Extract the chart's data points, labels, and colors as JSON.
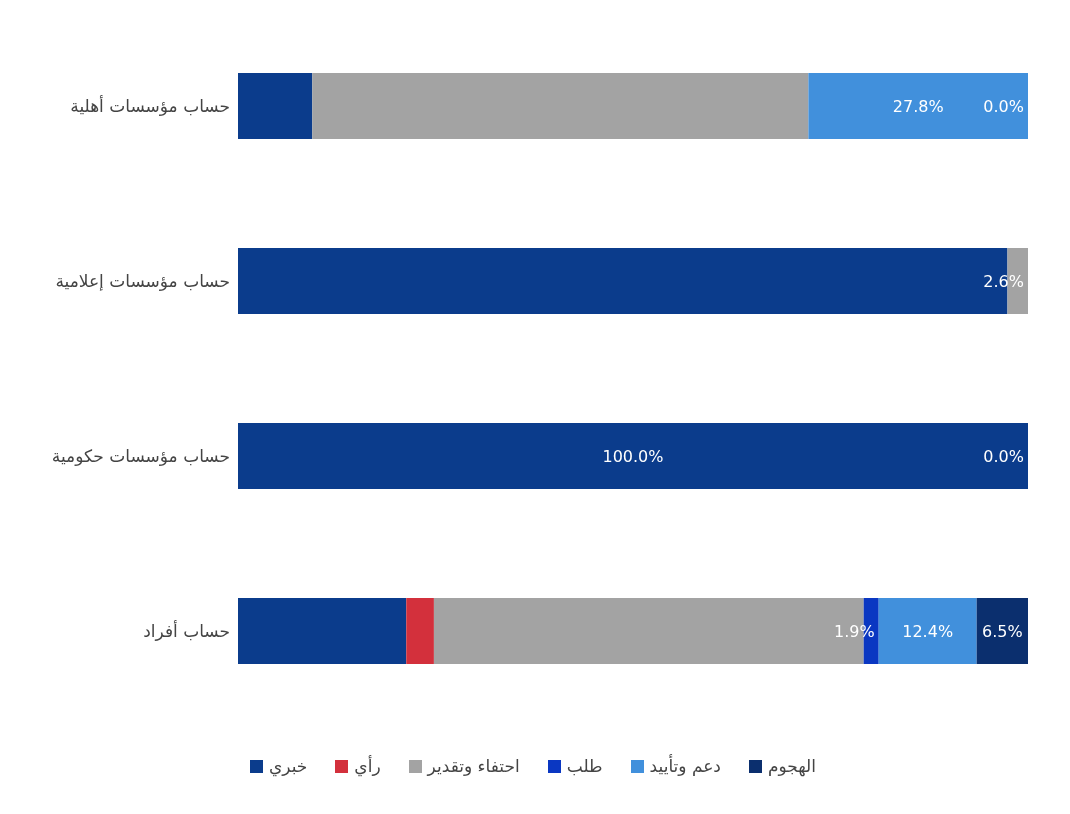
{
  "chart_data": {
    "type": "bar",
    "orientation": "horizontal",
    "stacked": true,
    "categories": [
      "حساب مؤسسات أهلية",
      "حساب مؤسسات إعلامية",
      "حساب مؤسسات حكومية",
      "حساب أفراد"
    ],
    "series": [
      {
        "name": "خبري",
        "color": "#0b3c8c",
        "values": [
          9.4,
          97.4,
          100.0,
          21.3
        ],
        "value_labels": [
          null,
          null,
          "100.0%",
          null
        ]
      },
      {
        "name": "رأي",
        "color": "#d3303c",
        "values": [
          0,
          0,
          0,
          3.5
        ],
        "value_labels": [
          null,
          null,
          null,
          null
        ]
      },
      {
        "name": "احتفاء وتقدير",
        "color": "#a3a3a3",
        "values": [
          62.8,
          2.6,
          0,
          54.4
        ],
        "value_labels": [
          null,
          "2.6%",
          null,
          null
        ]
      },
      {
        "name": "طلب",
        "color": "#0a37c2",
        "values": [
          0,
          0,
          0,
          1.9
        ],
        "value_labels": [
          null,
          null,
          null,
          "1.9%"
        ]
      },
      {
        "name": "دعم وتأييد",
        "color": "#4190dc",
        "values": [
          27.8,
          0,
          0,
          12.4
        ],
        "value_labels": [
          "27.8%",
          null,
          null,
          "12.4%"
        ]
      },
      {
        "name": "الهجوم",
        "color": "#0b2f6e",
        "values": [
          0,
          0,
          0,
          6.5
        ],
        "value_labels": [
          "0.0%",
          null,
          "0.0%",
          "6.5%"
        ]
      }
    ],
    "xlim": [
      0,
      100
    ],
    "legend": "bottom",
    "tick_labels": "y"
  }
}
